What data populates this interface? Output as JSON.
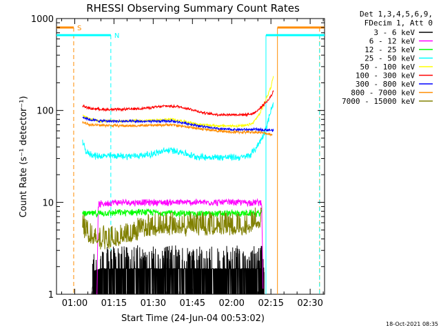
{
  "chart_data": {
    "type": "line",
    "title": "RHESSI Observing Summary Count Rates",
    "xlabel": "Start Time (24-Jun-04 00:53:02)",
    "ylabel": "Count Rate (s⁻¹ detector⁻¹)",
    "yscale": "log",
    "ylim": [
      1,
      1000
    ],
    "xlim_minutes": [
      53.03,
      155.5
    ],
    "x_ticks": [
      {
        "minute": 60,
        "label": "01:00"
      },
      {
        "minute": 75,
        "label": "01:15"
      },
      {
        "minute": 90,
        "label": "01:30"
      },
      {
        "minute": 105,
        "label": "01:45"
      },
      {
        "minute": 120,
        "label": "02:00"
      },
      {
        "minute": 135,
        "label": "02:15"
      },
      {
        "minute": 150,
        "label": "02:30"
      }
    ],
    "y_ticks": [
      {
        "value": 1,
        "label": "1"
      },
      {
        "value": 10,
        "label": "10"
      },
      {
        "value": 100,
        "label": "100"
      },
      {
        "value": 1000,
        "label": "1000"
      }
    ],
    "legend_header": [
      "Det 1,3,4,5,6,9,",
      "FDecim 1, Att 0"
    ],
    "series": [
      {
        "name": "3 - 6 keV",
        "color": "#000000",
        "noise": 0.0,
        "points": [
          [
            66.5,
            1
          ],
          [
            67.5,
            1.8
          ],
          [
            70,
            1.9
          ],
          [
            80,
            1.9
          ],
          [
            90,
            1.9
          ],
          [
            100,
            1.9
          ],
          [
            110,
            1.9
          ],
          [
            120,
            1.9
          ],
          [
            130,
            1.9
          ],
          [
            132,
            1.9
          ],
          [
            132.5,
            1
          ]
        ]
      },
      {
        "name": "6 - 12 keV",
        "color": "#ff00ff",
        "noise": 0.05,
        "points": [
          [
            68.5,
            1
          ],
          [
            69,
            9.5
          ],
          [
            75,
            10
          ],
          [
            85,
            10
          ],
          [
            95,
            10
          ],
          [
            105,
            10
          ],
          [
            115,
            10
          ],
          [
            125,
            10
          ],
          [
            131.5,
            10
          ],
          [
            132,
            1
          ]
        ]
      },
      {
        "name": "12 - 25 keV",
        "color": "#00ff00",
        "noise": 0.05,
        "points": [
          [
            63,
            7.5
          ],
          [
            70,
            7.6
          ],
          [
            80,
            7.8
          ],
          [
            90,
            7.8
          ],
          [
            100,
            7.6
          ],
          [
            110,
            7.5
          ],
          [
            120,
            7.6
          ],
          [
            131.5,
            7.6
          ]
        ]
      },
      {
        "name": "25 - 50 keV",
        "color": "#00ffff",
        "noise": 0.05,
        "points": [
          [
            63,
            45
          ],
          [
            64.5,
            35
          ],
          [
            68,
            32
          ],
          [
            75,
            32
          ],
          [
            82,
            32
          ],
          [
            88,
            33
          ],
          [
            96,
            37
          ],
          [
            100,
            36
          ],
          [
            105,
            32
          ],
          [
            110,
            31
          ],
          [
            120,
            31
          ],
          [
            125,
            31
          ],
          [
            127,
            33
          ],
          [
            129,
            38
          ],
          [
            131.5,
            50
          ],
          [
            133.5,
            70
          ],
          [
            135,
            100
          ],
          [
            136,
            120
          ]
        ]
      },
      {
        "name": "50 - 100 keV",
        "color": "#ffff00",
        "noise": 0.02,
        "points": [
          [
            63,
            88
          ],
          [
            66,
            80
          ],
          [
            70,
            77
          ],
          [
            80,
            77
          ],
          [
            90,
            78
          ],
          [
            97,
            80
          ],
          [
            102,
            76
          ],
          [
            108,
            70
          ],
          [
            115,
            68
          ],
          [
            120,
            68
          ],
          [
            125,
            68
          ],
          [
            128,
            72
          ],
          [
            131,
            95
          ],
          [
            133,
            130
          ],
          [
            135,
            180
          ],
          [
            136,
            240
          ]
        ]
      },
      {
        "name": "100 - 300 keV",
        "color": "#ff0000",
        "noise": 0.02,
        "points": [
          [
            63,
            112
          ],
          [
            66,
            105
          ],
          [
            70,
            103
          ],
          [
            75,
            102
          ],
          [
            80,
            103
          ],
          [
            85,
            105
          ],
          [
            90,
            108
          ],
          [
            95,
            112
          ],
          [
            100,
            110
          ],
          [
            105,
            102
          ],
          [
            110,
            93
          ],
          [
            115,
            90
          ],
          [
            120,
            90
          ],
          [
            125,
            90
          ],
          [
            128,
            92
          ],
          [
            130,
            100
          ],
          [
            132,
            115
          ],
          [
            134,
            130
          ],
          [
            135.5,
            150
          ],
          [
            136,
            170
          ]
        ]
      },
      {
        "name": "300 - 800 keV",
        "color": "#0000ff",
        "noise": 0.02,
        "points": [
          [
            63,
            85
          ],
          [
            66,
            79
          ],
          [
            70,
            77
          ],
          [
            80,
            76
          ],
          [
            90,
            76
          ],
          [
            97,
            77
          ],
          [
            103,
            72
          ],
          [
            110,
            66
          ],
          [
            115,
            63
          ],
          [
            120,
            62
          ],
          [
            125,
            62
          ],
          [
            130,
            62
          ],
          [
            135,
            61
          ],
          [
            136,
            60
          ]
        ]
      },
      {
        "name": "800 - 7000 keV",
        "color": "#ff8c00",
        "noise": 0.02,
        "points": [
          [
            63,
            74
          ],
          [
            66,
            70
          ],
          [
            70,
            69
          ],
          [
            80,
            68
          ],
          [
            90,
            69
          ],
          [
            97,
            70
          ],
          [
            102,
            67
          ],
          [
            108,
            63
          ],
          [
            115,
            60
          ],
          [
            120,
            58
          ],
          [
            125,
            58
          ],
          [
            130,
            58
          ],
          [
            135.5,
            55
          ]
        ]
      },
      {
        "name": "7000 - 15000 keV",
        "color": "#808000",
        "noise": 0.08,
        "points": [
          [
            63,
            5
          ],
          [
            66,
            4
          ],
          [
            70,
            3.5
          ],
          [
            75,
            3.5
          ],
          [
            80,
            4
          ],
          [
            85,
            4.5
          ],
          [
            90,
            5
          ],
          [
            100,
            5
          ],
          [
            110,
            5
          ],
          [
            120,
            5
          ],
          [
            125,
            5
          ],
          [
            131.5,
            6
          ]
        ]
      }
    ],
    "markers": [
      {
        "label": "S",
        "color": "#ff8c00",
        "value": 800,
        "start": 53.03,
        "end": 59.6,
        "start2": 137.5,
        "end2": 155.5,
        "dashed_at": [
          59.6,
          153.6
        ]
      },
      {
        "label": "N",
        "color": "#00ffff",
        "value": 660,
        "start": 53.03,
        "end": 73.8,
        "start2": 133.1,
        "end2": 155.5,
        "dashed_at": [
          73.8,
          153.6
        ]
      }
    ]
  },
  "footer": {
    "timestamp": "18-Oct-2021 08:35"
  }
}
